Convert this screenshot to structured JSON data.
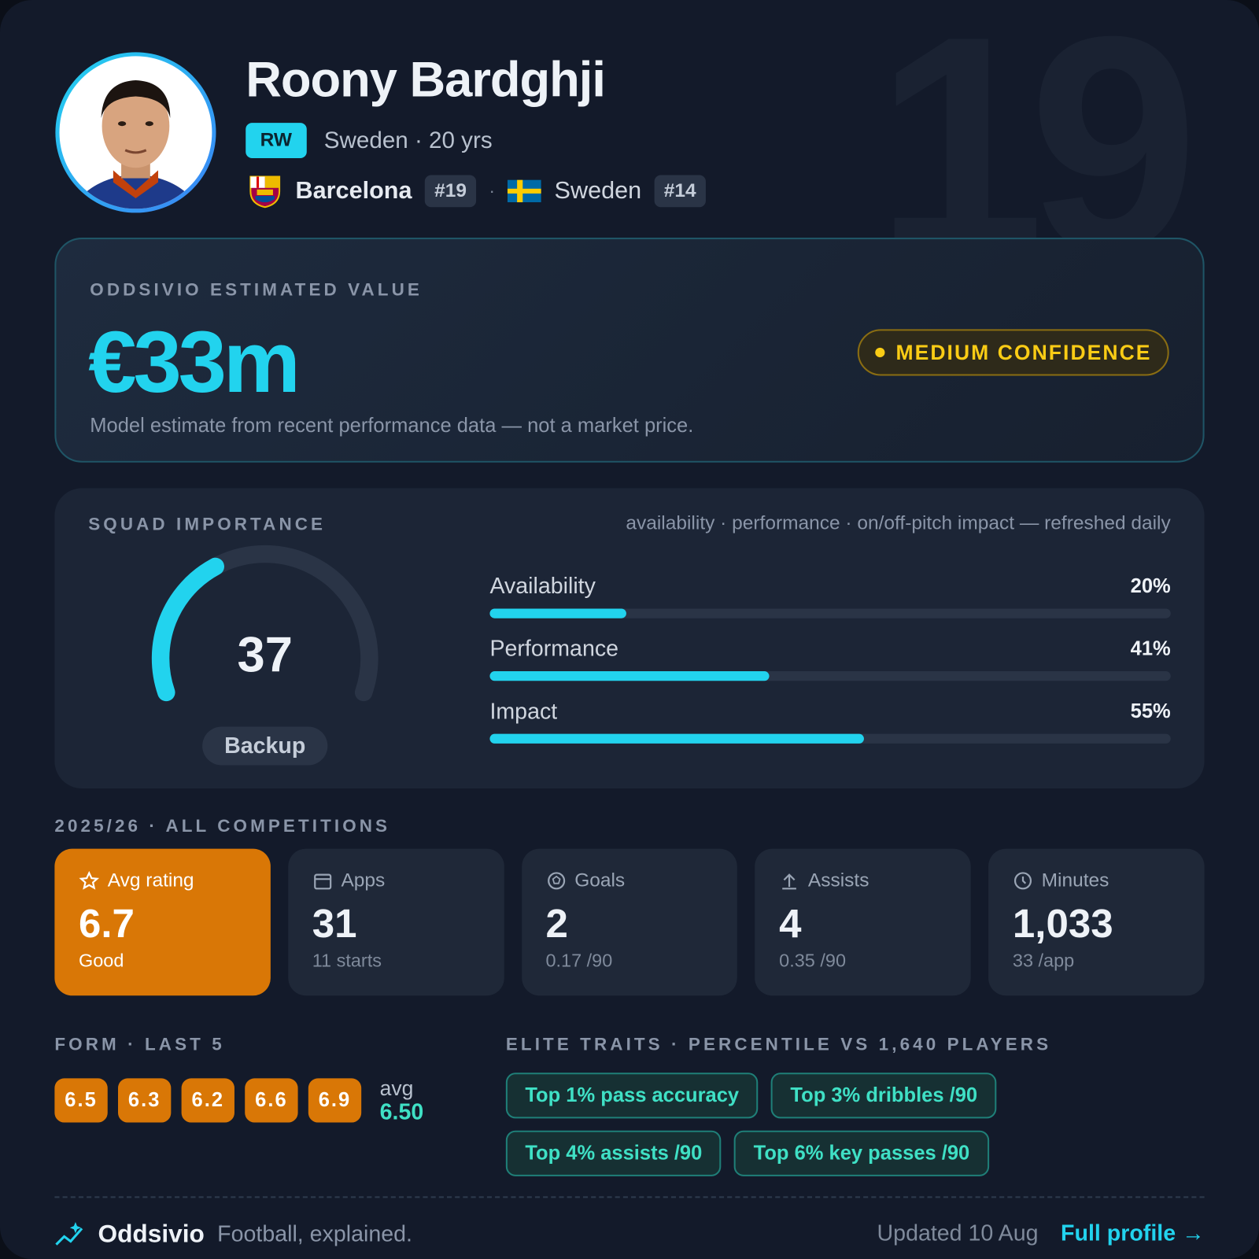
{
  "header": {
    "name": "Roony Bardghji",
    "position": "RW",
    "nationality_age": "Sweden · 20 yrs",
    "club": "Barcelona",
    "club_number": "#19",
    "separator": "·",
    "national_team": "Sweden",
    "national_number": "#14",
    "background_number": "19"
  },
  "valuation": {
    "label": "ODDSIVIO ESTIMATED VALUE",
    "amount": "€33m",
    "confidence": "MEDIUM CONFIDENCE",
    "note": "Model estimate from recent performance data — not a market price."
  },
  "squad_importance": {
    "title": "SQUAD IMPORTANCE",
    "subtitle": "availability · performance · on/off-pitch impact — refreshed daily",
    "gauge": {
      "value": 37,
      "lim": [
        0,
        100
      ]
    },
    "role": "Backup",
    "bars": {
      "lim": [
        0,
        100
      ],
      "items": [
        {
          "name": "Availability",
          "value": 20,
          "value_label": "20%"
        },
        {
          "name": "Performance",
          "value": 41,
          "value_label": "41%"
        },
        {
          "name": "Impact",
          "value": 55,
          "value_label": "55%"
        }
      ]
    }
  },
  "season": {
    "title": "2025/26 · ALL COMPETITIONS",
    "cards": [
      {
        "label": "Avg rating",
        "value": "6.7",
        "sub": "Good"
      },
      {
        "label": "Apps",
        "value": "31",
        "sub": "11 starts"
      },
      {
        "label": "Goals",
        "value": "2",
        "sub": "0.17 /90"
      },
      {
        "label": "Assists",
        "value": "4",
        "sub": "0.35 /90"
      },
      {
        "label": "Minutes",
        "value": "1,033",
        "sub": "33 /app"
      }
    ]
  },
  "form": {
    "title": "FORM · LAST 5",
    "ratings": [
      "6.5",
      "6.3",
      "6.2",
      "6.6",
      "6.9"
    ],
    "avg_label": "avg",
    "avg": "6.50"
  },
  "traits": {
    "title": "ELITE TRAITS · PERCENTILE VS 1,640 PLAYERS",
    "items": [
      "Top 1% pass accuracy",
      "Top 3% dribbles /90",
      "Top 4% assists /90",
      "Top 6% key passes /90"
    ]
  },
  "footer": {
    "brand": "Oddsivio",
    "tagline": "Football, explained.",
    "updated": "Updated 10 Aug",
    "link": "Full profile →"
  }
}
